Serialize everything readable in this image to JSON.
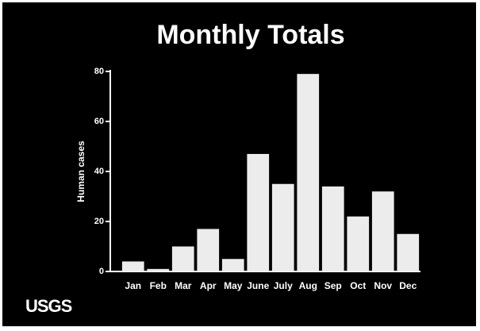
{
  "chart_data": {
    "type": "bar",
    "title": "Monthly Totals",
    "y_label": "Human cases",
    "categories": [
      "Jan",
      "Feb",
      "Mar",
      "Apr",
      "May",
      "June",
      "July",
      "Aug",
      "Sep",
      "Oct",
      "Nov",
      "Dec"
    ],
    "values": [
      4,
      1,
      10,
      17,
      5,
      47,
      35,
      79,
      34,
      22,
      32,
      15
    ],
    "color": "#ececec",
    "ylim": [
      0,
      80
    ],
    "yticks": [
      0,
      20,
      40,
      60,
      80
    ],
    "grid": false
  },
  "logo": "USGS"
}
